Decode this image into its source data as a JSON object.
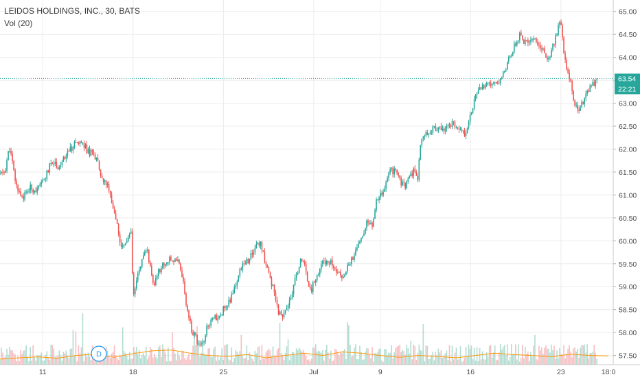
{
  "legend": {
    "title": "LEIDOS HOLDINGS, INC., 30, BATS",
    "volume_indicator": "Vol (20)"
  },
  "price_tag": {
    "price": "63.54",
    "countdown": "22:21"
  },
  "badge_label": "D",
  "colors": {
    "up": "#26a69a",
    "down": "#ef5350",
    "volume_up": "#a5d6c8",
    "volume_down": "#f4b3b6",
    "volume_ma": "#ff9800",
    "price_line": "#26a69a",
    "grid": "#ececec",
    "badge": "#2196f3"
  },
  "chart_data": {
    "type": "candlestick",
    "title": "LEIDOS HOLDINGS, INC., 30, BATS",
    "timeframe_minutes": 30,
    "y_axis": {
      "range": [
        57.3,
        65.25
      ],
      "ticks": [
        "65.00",
        "64.50",
        "64.00",
        "63.50",
        "63.00",
        "62.50",
        "62.00",
        "61.50",
        "61.00",
        "60.50",
        "60.00",
        "59.50",
        "59.00",
        "58.50",
        "58.00",
        "57.50"
      ]
    },
    "x_axis": {
      "labels": [
        {
          "label": "11",
          "slot": 4.5
        },
        {
          "label": "18",
          "slot": 14
        },
        {
          "label": "25",
          "slot": 23.5
        },
        {
          "label": "Jul",
          "slot": 33
        },
        {
          "label": "9",
          "slot": 40
        },
        {
          "label": "16",
          "slot": 49.5
        },
        {
          "label": "23",
          "slot": 59
        },
        {
          "label": "18:0",
          "slot": 64
        }
      ],
      "slots": 64.5
    },
    "last_price": 63.54,
    "price_path": [
      [
        0,
        61.45
      ],
      [
        0.5,
        61.5
      ],
      [
        1,
        62.05
      ],
      [
        1.7,
        61.2
      ],
      [
        2.4,
        60.95
      ],
      [
        3.2,
        61.15
      ],
      [
        4,
        61.1
      ],
      [
        4.8,
        61.4
      ],
      [
        5.5,
        61.75
      ],
      [
        6.2,
        61.6
      ],
      [
        7,
        61.85
      ],
      [
        7.8,
        62.1
      ],
      [
        8.5,
        62.15
      ],
      [
        9.3,
        61.95
      ],
      [
        10.2,
        61.8
      ],
      [
        10.6,
        61.35
      ],
      [
        11.3,
        61.2
      ],
      [
        11.8,
        60.75
      ],
      [
        12.3,
        60.45
      ],
      [
        12.5,
        60.0
      ],
      [
        13,
        59.85
      ],
      [
        13.4,
        60.05
      ],
      [
        13.8,
        60.15
      ],
      [
        14,
        58.7
      ],
      [
        14.3,
        59.05
      ],
      [
        14.8,
        59.5
      ],
      [
        15.5,
        59.8
      ],
      [
        16.1,
        59.0
      ],
      [
        16.7,
        59.35
      ],
      [
        17.5,
        59.55
      ],
      [
        18.2,
        59.6
      ],
      [
        18.8,
        59.5
      ],
      [
        19.3,
        59.05
      ],
      [
        19.8,
        58.3
      ],
      [
        20.3,
        58.0
      ],
      [
        20.9,
        57.75
      ],
      [
        21.4,
        57.85
      ],
      [
        21.8,
        58.1
      ],
      [
        22.3,
        58.25
      ],
      [
        22.8,
        58.35
      ],
      [
        23.3,
        58.45
      ],
      [
        23.8,
        58.6
      ],
      [
        24.3,
        58.75
      ],
      [
        24.8,
        59.1
      ],
      [
        25.3,
        59.35
      ],
      [
        25.7,
        59.55
      ],
      [
        26.2,
        59.6
      ],
      [
        26.7,
        59.75
      ],
      [
        27.2,
        60.0
      ],
      [
        27.5,
        59.85
      ],
      [
        27.8,
        59.6
      ],
      [
        28.3,
        59.3
      ],
      [
        28.8,
        58.9
      ],
      [
        29.3,
        58.45
      ],
      [
        29.8,
        58.35
      ],
      [
        30.3,
        58.55
      ],
      [
        30.8,
        58.9
      ],
      [
        31.2,
        59.3
      ],
      [
        31.6,
        59.55
      ],
      [
        32,
        59.5
      ],
      [
        32.4,
        59.1
      ],
      [
        32.8,
        58.95
      ],
      [
        33.2,
        59.2
      ],
      [
        33.6,
        59.35
      ],
      [
        34,
        59.55
      ],
      [
        34.5,
        59.6
      ],
      [
        35,
        59.5
      ],
      [
        35.5,
        59.35
      ],
      [
        36,
        59.15
      ],
      [
        36.5,
        59.45
      ],
      [
        37,
        59.6
      ],
      [
        37.5,
        59.8
      ],
      [
        38.1,
        60.15
      ],
      [
        38.6,
        60.4
      ],
      [
        39.1,
        60.3
      ],
      [
        39.6,
        60.85
      ],
      [
        40.1,
        61.0
      ],
      [
        40.6,
        61.25
      ],
      [
        41.1,
        61.55
      ],
      [
        41.6,
        61.5
      ],
      [
        42.1,
        61.3
      ],
      [
        42.6,
        61.2
      ],
      [
        43.1,
        61.35
      ],
      [
        43.5,
        61.55
      ],
      [
        43.9,
        61.3
      ],
      [
        44.2,
        62.05
      ],
      [
        44.6,
        62.35
      ],
      [
        45.1,
        62.4
      ],
      [
        45.6,
        62.45
      ],
      [
        46.1,
        62.4
      ],
      [
        46.6,
        62.45
      ],
      [
        47.1,
        62.5
      ],
      [
        47.6,
        62.55
      ],
      [
        48.1,
        62.4
      ],
      [
        48.6,
        62.45
      ],
      [
        48.9,
        62.35
      ],
      [
        49.3,
        62.6
      ],
      [
        49.7,
        62.95
      ],
      [
        50.2,
        63.2
      ],
      [
        50.7,
        63.35
      ],
      [
        51.2,
        63.4
      ],
      [
        51.7,
        63.35
      ],
      [
        52.2,
        63.45
      ],
      [
        52.7,
        63.55
      ],
      [
        53.2,
        63.8
      ],
      [
        53.7,
        64.05
      ],
      [
        54.2,
        64.3
      ],
      [
        54.7,
        64.5
      ],
      [
        55.2,
        64.3
      ],
      [
        55.7,
        64.35
      ],
      [
        56.2,
        64.45
      ],
      [
        56.7,
        64.3
      ],
      [
        57.2,
        64.15
      ],
      [
        57.7,
        63.9
      ],
      [
        58.2,
        64.3
      ],
      [
        58.6,
        64.55
      ],
      [
        59,
        64.8
      ],
      [
        59.3,
        64.15
      ],
      [
        59.6,
        63.75
      ],
      [
        60,
        63.45
      ],
      [
        60.4,
        63.05
      ],
      [
        60.8,
        62.85
      ],
      [
        61.2,
        63.0
      ],
      [
        61.6,
        63.15
      ],
      [
        62,
        63.3
      ],
      [
        62.4,
        63.4
      ],
      [
        62.8,
        63.54
      ]
    ],
    "volume_ma_path": [
      [
        0,
        57.42
      ],
      [
        2,
        57.45
      ],
      [
        4,
        57.47
      ],
      [
        6,
        57.44
      ],
      [
        8,
        57.5
      ],
      [
        10,
        57.53
      ],
      [
        12,
        57.46
      ],
      [
        14,
        57.54
      ],
      [
        16,
        57.6
      ],
      [
        18,
        57.62
      ],
      [
        20,
        57.55
      ],
      [
        22,
        57.5
      ],
      [
        24,
        57.48
      ],
      [
        26,
        57.52
      ],
      [
        28,
        57.45
      ],
      [
        30,
        57.5
      ],
      [
        32,
        57.55
      ],
      [
        34,
        57.5
      ],
      [
        36,
        57.58
      ],
      [
        38,
        57.55
      ],
      [
        40,
        57.5
      ],
      [
        42,
        57.46
      ],
      [
        44,
        57.5
      ],
      [
        46,
        57.48
      ],
      [
        48,
        57.45
      ],
      [
        50,
        57.5
      ],
      [
        52,
        57.55
      ],
      [
        54,
        57.52
      ],
      [
        56,
        57.5
      ],
      [
        58,
        57.47
      ],
      [
        60,
        57.53
      ],
      [
        62,
        57.5
      ],
      [
        64,
        57.49
      ]
    ]
  }
}
